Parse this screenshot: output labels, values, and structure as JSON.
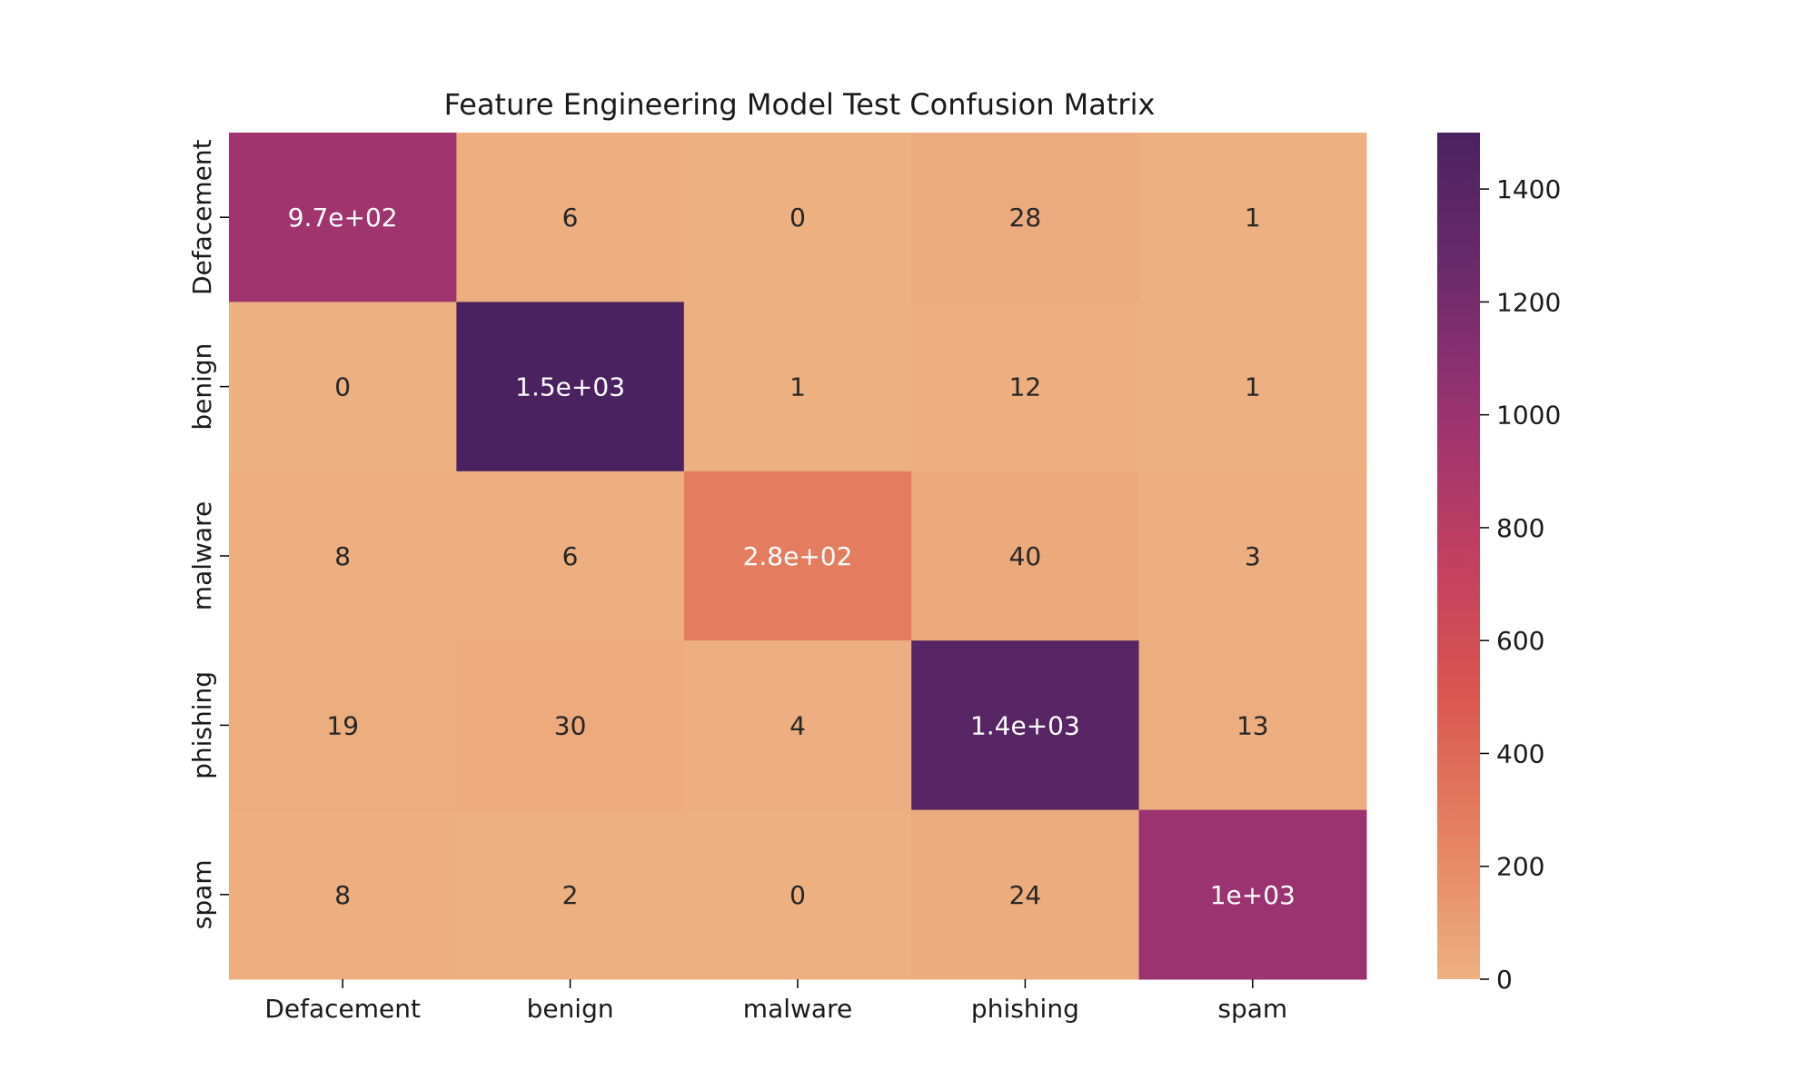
{
  "chart_data": {
    "type": "heatmap",
    "title": "Feature Engineering Model Test Confusion Matrix",
    "xlabel": "",
    "ylabel": "",
    "x_categories": [
      "Defacement",
      "benign",
      "malware",
      "phishing",
      "spam"
    ],
    "y_categories": [
      "Defacement",
      "benign",
      "malware",
      "phishing",
      "spam"
    ],
    "values": [
      [
        970,
        6,
        0,
        28,
        1
      ],
      [
        0,
        1500,
        1,
        12,
        1
      ],
      [
        8,
        6,
        280,
        40,
        3
      ],
      [
        19,
        30,
        4,
        1400,
        13
      ],
      [
        8,
        2,
        0,
        24,
        1000
      ]
    ],
    "annotations": [
      [
        "9.7e+02",
        "6",
        "0",
        "28",
        "1"
      ],
      [
        "0",
        "1.5e+03",
        "1",
        "12",
        "1"
      ],
      [
        "8",
        "6",
        "2.8e+02",
        "40",
        "3"
      ],
      [
        "19",
        "30",
        "4",
        "1.4e+03",
        "13"
      ],
      [
        "8",
        "2",
        "0",
        "24",
        "1e+03"
      ]
    ],
    "colorbar": {
      "min": 0,
      "max": 1500,
      "ticks": [
        0,
        200,
        400,
        600,
        800,
        1000,
        1200,
        1400
      ],
      "tick_labels": [
        "0",
        "200",
        "400",
        "600",
        "800",
        "1000",
        "1200",
        "1400"
      ]
    },
    "colormap": "flare",
    "colormap_stops": [
      "#edb081",
      "#e58262",
      "#d9574f",
      "#c13f60",
      "#9a3370",
      "#6c2a6b",
      "#4a2260"
    ],
    "grid": false
  }
}
